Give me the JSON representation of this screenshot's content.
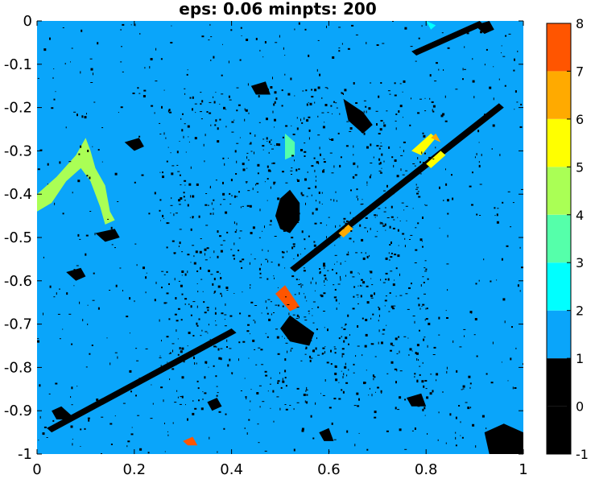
{
  "chart_data": {
    "type": "heatmap",
    "title": "eps: 0.06 minpts: 200",
    "xlabel": "",
    "ylabel": "",
    "xlim": [
      0,
      1
    ],
    "ylim": [
      -1,
      0
    ],
    "x_ticks": [
      0,
      0.2,
      0.4,
      0.6,
      0.8,
      1
    ],
    "x_tick_labels": [
      "0",
      "0.2",
      "0.4",
      "0.6",
      "0.8",
      "1"
    ],
    "y_ticks": [
      0,
      -0.1,
      -0.2,
      -0.3,
      -0.4,
      -0.5,
      -0.6,
      -0.7,
      -0.8,
      -0.9,
      -1
    ],
    "y_tick_labels": [
      "0",
      "-0.1",
      "-0.2",
      "-0.3",
      "-0.4",
      "-0.5",
      "-0.6",
      "-0.7",
      "-0.8",
      "-0.9",
      "-1"
    ],
    "grid": false,
    "background_cluster": 1,
    "colorbar": {
      "range": [
        -1,
        8
      ],
      "ticks": [
        -1,
        0,
        1,
        2,
        3,
        4,
        5,
        6,
        7,
        8
      ],
      "tick_labels": [
        "-1",
        "0",
        "1",
        "2",
        "3",
        "4",
        "5",
        "6",
        "7",
        "8"
      ],
      "colors": [
        "#000000",
        "#000000",
        "#0aa5fa",
        "#00ffff",
        "#55ffaa",
        "#aaff55",
        "#ffff00",
        "#ffaa00",
        "#ff5500"
      ]
    },
    "regions": [
      {
        "cluster": 0,
        "points": [
          [
            0.5,
            -0.41
          ],
          [
            0.52,
            -0.39
          ],
          [
            0.54,
            -0.42
          ],
          [
            0.54,
            -0.46
          ],
          [
            0.52,
            -0.49
          ],
          [
            0.5,
            -0.48
          ],
          [
            0.49,
            -0.45
          ]
        ]
      },
      {
        "cluster": 0,
        "points": [
          [
            0.63,
            -0.18
          ],
          [
            0.67,
            -0.21
          ],
          [
            0.69,
            -0.24
          ],
          [
            0.67,
            -0.26
          ],
          [
            0.64,
            -0.23
          ]
        ]
      },
      {
        "cluster": 0,
        "points": [
          [
            0.03,
            -0.9
          ],
          [
            0.05,
            -0.89
          ],
          [
            0.07,
            -0.91
          ],
          [
            0.06,
            -0.92
          ],
          [
            0.04,
            -0.92
          ]
        ]
      },
      {
        "cluster": 0,
        "points": [
          [
            0.92,
            -0.95
          ],
          [
            0.96,
            -0.93
          ],
          [
            1.0,
            -0.95
          ],
          [
            1.0,
            -1.0
          ],
          [
            0.93,
            -1.0
          ]
        ]
      },
      {
        "cluster": 0,
        "points": [
          [
            0.9,
            -0.01
          ],
          [
            0.93,
            -0.0
          ],
          [
            0.94,
            -0.02
          ],
          [
            0.92,
            -0.03
          ]
        ]
      },
      {
        "cluster": 0,
        "points": [
          [
            0.06,
            -0.58
          ],
          [
            0.09,
            -0.57
          ],
          [
            0.1,
            -0.59
          ],
          [
            0.08,
            -0.6
          ]
        ]
      },
      {
        "cluster": 0,
        "points": [
          [
            0.44,
            -0.15
          ],
          [
            0.47,
            -0.14
          ],
          [
            0.48,
            -0.17
          ],
          [
            0.45,
            -0.17
          ]
        ]
      },
      {
        "cluster": 0,
        "points": [
          [
            0.02,
            -0.94
          ],
          [
            0.4,
            -0.71
          ],
          [
            0.41,
            -0.72
          ],
          [
            0.03,
            -0.95
          ]
        ]
      },
      {
        "cluster": 0,
        "points": [
          [
            0.52,
            -0.57
          ],
          [
            0.95,
            -0.19
          ],
          [
            0.96,
            -0.2
          ],
          [
            0.53,
            -0.58
          ]
        ]
      },
      {
        "cluster": 0,
        "points": [
          [
            0.77,
            -0.07
          ],
          [
            0.91,
            0.0
          ],
          [
            0.92,
            -0.01
          ],
          [
            0.78,
            -0.08
          ]
        ]
      },
      {
        "cluster": 0,
        "points": [
          [
            0.5,
            -0.71
          ],
          [
            0.52,
            -0.68
          ],
          [
            0.57,
            -0.72
          ],
          [
            0.56,
            -0.75
          ],
          [
            0.52,
            -0.74
          ]
        ]
      },
      {
        "cluster": 0,
        "points": [
          [
            0.18,
            -0.28
          ],
          [
            0.21,
            -0.27
          ],
          [
            0.22,
            -0.29
          ],
          [
            0.2,
            -0.3
          ]
        ]
      },
      {
        "cluster": 0,
        "points": [
          [
            0.12,
            -0.49
          ],
          [
            0.16,
            -0.48
          ],
          [
            0.17,
            -0.5
          ],
          [
            0.14,
            -0.51
          ]
        ]
      },
      {
        "cluster": 0,
        "points": [
          [
            0.35,
            -0.88
          ],
          [
            0.37,
            -0.87
          ],
          [
            0.38,
            -0.89
          ],
          [
            0.36,
            -0.9
          ]
        ]
      },
      {
        "cluster": 0,
        "points": [
          [
            0.76,
            -0.87
          ],
          [
            0.79,
            -0.86
          ],
          [
            0.8,
            -0.89
          ],
          [
            0.77,
            -0.89
          ]
        ]
      },
      {
        "cluster": 0,
        "points": [
          [
            0.58,
            -0.95
          ],
          [
            0.6,
            -0.94
          ],
          [
            0.61,
            -0.97
          ],
          [
            0.59,
            -0.97
          ]
        ]
      },
      {
        "cluster": 2,
        "points": [
          [
            0.8,
            0.0
          ],
          [
            0.82,
            -0.01
          ],
          [
            0.81,
            -0.02
          ]
        ]
      },
      {
        "cluster": 3,
        "points": [
          [
            0.51,
            -0.26
          ],
          [
            0.53,
            -0.28
          ],
          [
            0.53,
            -0.31
          ],
          [
            0.51,
            -0.32
          ],
          [
            0.51,
            -0.29
          ]
        ]
      },
      {
        "cluster": 4,
        "points": [
          [
            0.0,
            -0.4
          ],
          [
            0.04,
            -0.36
          ],
          [
            0.08,
            -0.31
          ],
          [
            0.1,
            -0.27
          ],
          [
            0.11,
            -0.3
          ],
          [
            0.12,
            -0.34
          ],
          [
            0.14,
            -0.38
          ],
          [
            0.15,
            -0.44
          ],
          [
            0.16,
            -0.46
          ],
          [
            0.14,
            -0.47
          ],
          [
            0.13,
            -0.43
          ],
          [
            0.11,
            -0.37
          ],
          [
            0.09,
            -0.34
          ],
          [
            0.06,
            -0.37
          ],
          [
            0.03,
            -0.42
          ],
          [
            0.0,
            -0.44
          ]
        ]
      },
      {
        "cluster": 5,
        "points": [
          [
            0.77,
            -0.3
          ],
          [
            0.81,
            -0.26
          ],
          [
            0.82,
            -0.27
          ],
          [
            0.79,
            -0.31
          ]
        ]
      },
      {
        "cluster": 5,
        "points": [
          [
            0.8,
            -0.33
          ],
          [
            0.83,
            -0.3
          ],
          [
            0.84,
            -0.31
          ],
          [
            0.81,
            -0.34
          ]
        ]
      },
      {
        "cluster": 6,
        "points": [
          [
            0.62,
            -0.49
          ],
          [
            0.64,
            -0.47
          ],
          [
            0.65,
            -0.48
          ],
          [
            0.63,
            -0.5
          ]
        ]
      },
      {
        "cluster": 6,
        "points": [
          [
            0.81,
            -0.27
          ],
          [
            0.82,
            -0.26
          ],
          [
            0.83,
            -0.28
          ]
        ]
      },
      {
        "cluster": 7,
        "points": [
          [
            0.49,
            -0.63
          ],
          [
            0.51,
            -0.61
          ],
          [
            0.54,
            -0.66
          ],
          [
            0.52,
            -0.67
          ]
        ]
      },
      {
        "cluster": 7,
        "points": [
          [
            0.3,
            -0.97
          ],
          [
            0.32,
            -0.96
          ],
          [
            0.33,
            -0.98
          ],
          [
            0.31,
            -0.98
          ]
        ]
      }
    ]
  }
}
